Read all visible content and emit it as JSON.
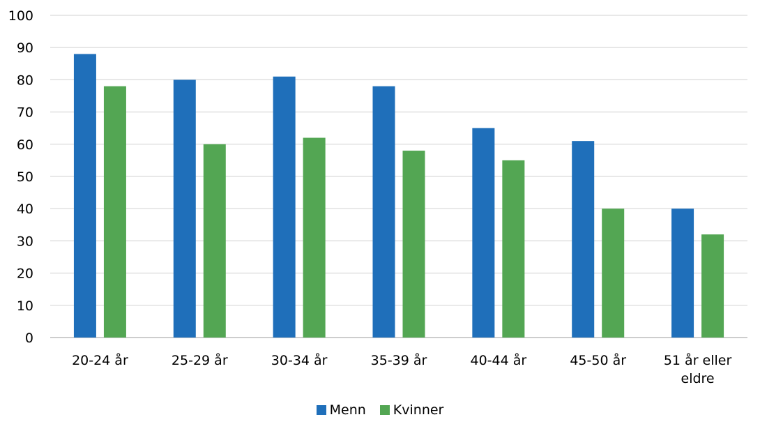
{
  "chart_data": {
    "type": "bar",
    "title": "",
    "xlabel": "",
    "ylabel": "",
    "categories": [
      "20-24 år",
      "25-29 år",
      "30-34 år",
      "35-39 år",
      "40-44 år",
      "45-50 år",
      "51 år eller eldre"
    ],
    "series": [
      {
        "name": "Menn",
        "color": "#1f6fba",
        "values": [
          88,
          80,
          81,
          78,
          65,
          61,
          40
        ]
      },
      {
        "name": "Kvinner",
        "color": "#53a653",
        "values": [
          78,
          60,
          62,
          58,
          55,
          40,
          32
        ]
      }
    ],
    "ylim": [
      0,
      100
    ],
    "yticks": [
      0,
      10,
      20,
      30,
      40,
      50,
      60,
      70,
      80,
      90,
      100
    ],
    "grid": true,
    "legend_position": "bottom"
  }
}
